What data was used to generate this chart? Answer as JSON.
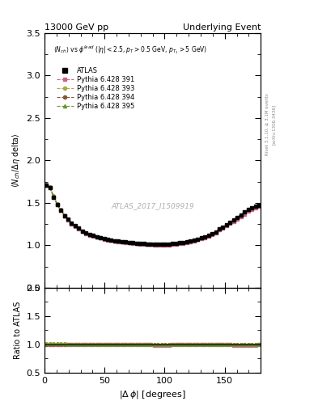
{
  "title_left": "13000 GeV pp",
  "title_right": "Underlying Event",
  "watermark": "ATLAS_2017_I1509919",
  "right_label": "Rivet 3.1.10, ≥ 3.1M events",
  "right_label2": "[arXiv:1306.3436]",
  "ylabel_main": "⟨ N_{ch} / Δη delta⟩",
  "ylabel_ratio": "Ratio to ATLAS",
  "xlabel": "|Δ ϕ| [degrees]",
  "ylim_main": [
    0.5,
    3.5
  ],
  "ylim_ratio": [
    0.5,
    2.0
  ],
  "xlim": [
    0,
    180
  ],
  "yticks_main": [
    0.5,
    1.0,
    1.5,
    2.0,
    2.5,
    3.0,
    3.5
  ],
  "yticks_ratio": [
    0.5,
    1.0,
    1.5,
    2.0
  ],
  "xticks": [
    0,
    50,
    100,
    150
  ],
  "mc_colors": [
    "#cc6688",
    "#aaaa44",
    "#885533",
    "#669933"
  ],
  "mc_markers": [
    "s",
    "o",
    "o",
    "^"
  ],
  "mc_labels": [
    "Pythia 6.428 391",
    "Pythia 6.428 393",
    "Pythia 6.428 394",
    "Pythia 6.428 395"
  ],
  "x_data": [
    1.5,
    4.5,
    7.5,
    10.5,
    13.5,
    16.5,
    19.5,
    22.5,
    25.5,
    28.5,
    31.5,
    34.5,
    37.5,
    40.5,
    43.5,
    46.5,
    49.5,
    52.5,
    55.5,
    58.5,
    61.5,
    64.5,
    67.5,
    70.5,
    73.5,
    76.5,
    79.5,
    82.5,
    85.5,
    88.5,
    91.5,
    94.5,
    97.5,
    100.5,
    103.5,
    106.5,
    109.5,
    112.5,
    115.5,
    118.5,
    121.5,
    124.5,
    127.5,
    130.5,
    133.5,
    136.5,
    139.5,
    142.5,
    145.5,
    148.5,
    151.5,
    154.5,
    157.5,
    160.5,
    163.5,
    166.5,
    169.5,
    172.5,
    175.5,
    178.5
  ],
  "y_atlas": [
    1.71,
    1.68,
    1.57,
    1.48,
    1.41,
    1.35,
    1.31,
    1.26,
    1.23,
    1.2,
    1.17,
    1.15,
    1.13,
    1.12,
    1.1,
    1.09,
    1.08,
    1.07,
    1.06,
    1.05,
    1.05,
    1.04,
    1.04,
    1.03,
    1.03,
    1.02,
    1.02,
    1.02,
    1.01,
    1.01,
    1.01,
    1.01,
    1.01,
    1.01,
    1.01,
    1.02,
    1.02,
    1.03,
    1.03,
    1.04,
    1.05,
    1.06,
    1.07,
    1.09,
    1.1,
    1.12,
    1.14,
    1.16,
    1.19,
    1.21,
    1.24,
    1.27,
    1.3,
    1.33,
    1.36,
    1.39,
    1.42,
    1.44,
    1.46,
    1.47
  ],
  "y_391": [
    1.71,
    1.68,
    1.57,
    1.48,
    1.41,
    1.35,
    1.3,
    1.25,
    1.22,
    1.19,
    1.17,
    1.14,
    1.12,
    1.11,
    1.1,
    1.09,
    1.07,
    1.06,
    1.06,
    1.05,
    1.04,
    1.04,
    1.03,
    1.03,
    1.02,
    1.02,
    1.01,
    1.01,
    1.01,
    1.01,
    1.0,
    1.0,
    1.0,
    1.0,
    1.0,
    1.01,
    1.01,
    1.02,
    1.02,
    1.03,
    1.04,
    1.05,
    1.07,
    1.08,
    1.09,
    1.11,
    1.13,
    1.15,
    1.18,
    1.2,
    1.23,
    1.26,
    1.28,
    1.31,
    1.34,
    1.37,
    1.4,
    1.42,
    1.44,
    1.46
  ],
  "y_393": [
    1.72,
    1.69,
    1.58,
    1.49,
    1.42,
    1.36,
    1.31,
    1.26,
    1.23,
    1.2,
    1.17,
    1.15,
    1.13,
    1.12,
    1.1,
    1.09,
    1.08,
    1.07,
    1.06,
    1.05,
    1.05,
    1.04,
    1.04,
    1.03,
    1.03,
    1.02,
    1.02,
    1.02,
    1.01,
    1.01,
    1.01,
    1.01,
    1.01,
    1.01,
    1.01,
    1.02,
    1.02,
    1.03,
    1.03,
    1.04,
    1.05,
    1.06,
    1.07,
    1.09,
    1.1,
    1.12,
    1.14,
    1.16,
    1.19,
    1.21,
    1.24,
    1.27,
    1.3,
    1.33,
    1.36,
    1.39,
    1.42,
    1.44,
    1.46,
    1.47
  ],
  "y_394": [
    1.71,
    1.68,
    1.57,
    1.48,
    1.41,
    1.35,
    1.31,
    1.26,
    1.23,
    1.2,
    1.17,
    1.15,
    1.13,
    1.12,
    1.1,
    1.09,
    1.08,
    1.07,
    1.06,
    1.05,
    1.05,
    1.04,
    1.04,
    1.03,
    1.03,
    1.02,
    1.02,
    1.02,
    1.01,
    1.01,
    1.01,
    1.01,
    1.01,
    1.01,
    1.01,
    1.02,
    1.02,
    1.03,
    1.03,
    1.04,
    1.05,
    1.06,
    1.07,
    1.09,
    1.1,
    1.12,
    1.14,
    1.16,
    1.19,
    1.21,
    1.24,
    1.27,
    1.3,
    1.33,
    1.36,
    1.39,
    1.42,
    1.44,
    1.46,
    1.47
  ],
  "y_395": [
    1.72,
    1.69,
    1.58,
    1.49,
    1.42,
    1.36,
    1.31,
    1.26,
    1.23,
    1.2,
    1.17,
    1.15,
    1.13,
    1.12,
    1.1,
    1.09,
    1.08,
    1.07,
    1.06,
    1.05,
    1.05,
    1.04,
    1.04,
    1.03,
    1.03,
    1.02,
    1.02,
    1.02,
    1.01,
    1.01,
    1.01,
    1.01,
    1.01,
    1.01,
    1.01,
    1.02,
    1.02,
    1.03,
    1.03,
    1.04,
    1.05,
    1.06,
    1.07,
    1.09,
    1.1,
    1.12,
    1.14,
    1.16,
    1.19,
    1.21,
    1.24,
    1.27,
    1.3,
    1.33,
    1.36,
    1.39,
    1.42,
    1.44,
    1.46,
    1.47
  ],
  "y_err_atlas": [
    0.02,
    0.01,
    0.01,
    0.01,
    0.01,
    0.01,
    0.01,
    0.01,
    0.01,
    0.005,
    0.005,
    0.005,
    0.005,
    0.005,
    0.005,
    0.005,
    0.005,
    0.005,
    0.005,
    0.005,
    0.005,
    0.005,
    0.005,
    0.005,
    0.005,
    0.005,
    0.005,
    0.005,
    0.005,
    0.005,
    0.005,
    0.005,
    0.005,
    0.005,
    0.005,
    0.005,
    0.005,
    0.005,
    0.005,
    0.005,
    0.005,
    0.005,
    0.005,
    0.005,
    0.005,
    0.005,
    0.005,
    0.005,
    0.005,
    0.005,
    0.005,
    0.005,
    0.01,
    0.01,
    0.01,
    0.01,
    0.01,
    0.01,
    0.01,
    0.01
  ]
}
